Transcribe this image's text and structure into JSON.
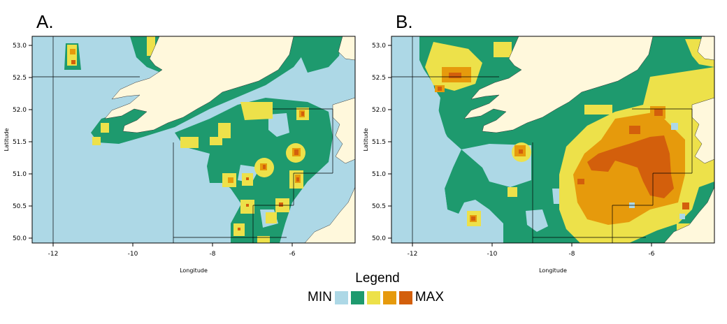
{
  "panels": [
    {
      "letter": "A.",
      "xlabel": "Longitude",
      "ylabel": "Latitude"
    },
    {
      "letter": "B.",
      "xlabel": "Longitude",
      "ylabel": "Latitude"
    }
  ],
  "axes": {
    "x_ticks": [
      "-12",
      "-10",
      "-8",
      "-6"
    ],
    "y_ticks": [
      "53.0",
      "52.5",
      "52.0",
      "51.5",
      "51.0",
      "50.5",
      "50.0"
    ]
  },
  "colors": {
    "sea": "#add8e6",
    "land": "#fff8dc",
    "level1": "#1e9a6e",
    "level2": "#ede14a",
    "level3": "#e69a0c",
    "level4": "#d35f0c"
  },
  "legend": {
    "title": "Legend",
    "min_label": "MIN",
    "max_label": "MAX",
    "swatches": [
      "#add8e6",
      "#1e9a6e",
      "#ede14a",
      "#e69a0c",
      "#d35f0c"
    ]
  }
}
